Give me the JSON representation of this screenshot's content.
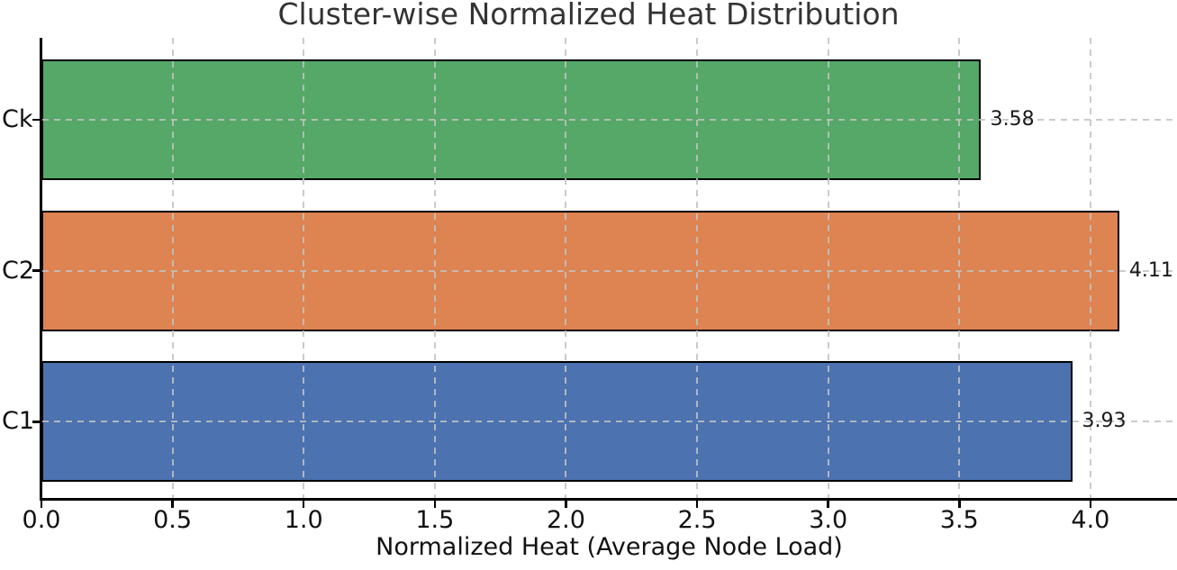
{
  "chart_data": {
    "type": "bar",
    "orientation": "horizontal",
    "title": "Cluster-wise Normalized Heat Distribution",
    "xlabel": "Normalized Heat (Average Node Load)",
    "ylabel": "",
    "categories": [
      "Ck",
      "C2",
      "C1"
    ],
    "values": [
      3.58,
      4.11,
      3.93
    ],
    "value_labels": [
      "3.58",
      "4.11",
      "3.93"
    ],
    "series": [
      {
        "name": "Ck",
        "value": 3.58,
        "color": "#55a868"
      },
      {
        "name": "C2",
        "value": 4.11,
        "color": "#dd8452"
      },
      {
        "name": "C1",
        "value": 3.93,
        "color": "#4c72b0"
      }
    ],
    "bar_edge_color": "#000000",
    "xlim": [
      0,
      4.33
    ],
    "xticks": [
      0.0,
      0.5,
      1.0,
      1.5,
      2.0,
      2.5,
      3.0,
      3.5,
      4.0
    ],
    "xtick_labels": [
      "0.0",
      "0.5",
      "1.0",
      "1.5",
      "2.0",
      "2.5",
      "3.0",
      "3.5",
      "4.0"
    ],
    "grid": "dashed gray gridlines on both axes, drawn above bars",
    "legend": "none",
    "background_color": "#ffffff",
    "title_color": "#333333"
  }
}
